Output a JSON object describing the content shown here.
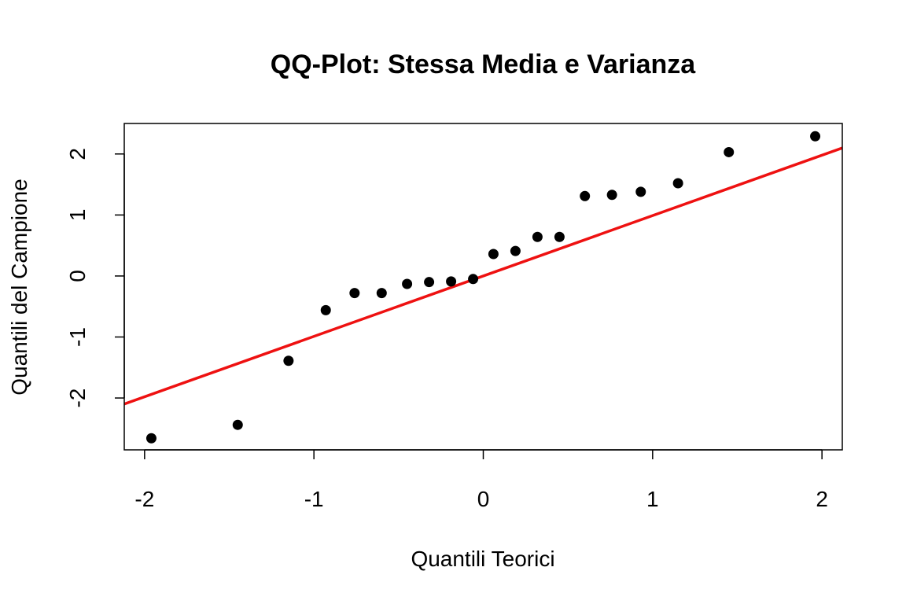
{
  "chart_data": {
    "type": "scatter",
    "title": "QQ-Plot: Stessa Media e Varianza",
    "xlabel": "Quantili Teorici",
    "ylabel": "Quantili del Campione",
    "xlim": [
      -2.12,
      2.12
    ],
    "ylim": [
      -2.85,
      2.5
    ],
    "x_ticks": [
      -2,
      -1,
      0,
      1,
      2
    ],
    "y_ticks": [
      -2,
      -1,
      0,
      1,
      2
    ],
    "x_tick_labels": [
      "-2",
      "-1",
      "0",
      "1",
      "2"
    ],
    "y_tick_labels": [
      "-2",
      "-1",
      "0",
      "1",
      "2"
    ],
    "grid": false,
    "points": [
      {
        "x": -1.96,
        "y": -2.66
      },
      {
        "x": -1.45,
        "y": -2.44
      },
      {
        "x": -1.15,
        "y": -1.39
      },
      {
        "x": -0.93,
        "y": -0.56
      },
      {
        "x": -0.76,
        "y": -0.28
      },
      {
        "x": -0.6,
        "y": -0.28
      },
      {
        "x": -0.45,
        "y": -0.13
      },
      {
        "x": -0.32,
        "y": -0.1
      },
      {
        "x": -0.19,
        "y": -0.09
      },
      {
        "x": -0.06,
        "y": -0.05
      },
      {
        "x": 0.06,
        "y": 0.36
      },
      {
        "x": 0.19,
        "y": 0.41
      },
      {
        "x": 0.32,
        "y": 0.64
      },
      {
        "x": 0.45,
        "y": 0.64
      },
      {
        "x": 0.6,
        "y": 1.31
      },
      {
        "x": 0.76,
        "y": 1.33
      },
      {
        "x": 0.93,
        "y": 1.38
      },
      {
        "x": 1.15,
        "y": 1.52
      },
      {
        "x": 1.45,
        "y": 2.03
      },
      {
        "x": 1.96,
        "y": 2.29
      }
    ],
    "reference_line": {
      "slope": 0.99,
      "intercept": 0.0,
      "color": "#ee1111"
    },
    "point_color": "#000000"
  }
}
